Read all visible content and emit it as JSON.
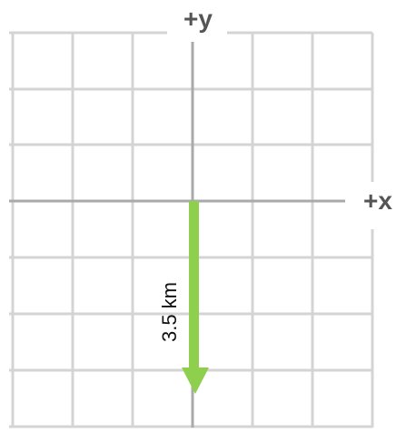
{
  "axes": {
    "x_label": "+x",
    "y_label": "+y"
  },
  "vector": {
    "magnitude_label": "3.5 km",
    "direction": "-y",
    "color": "#8ed04d"
  },
  "colors": {
    "grid": "#d4d4d4",
    "axis": "#aaaaaa",
    "axis_label": "#555555"
  }
}
